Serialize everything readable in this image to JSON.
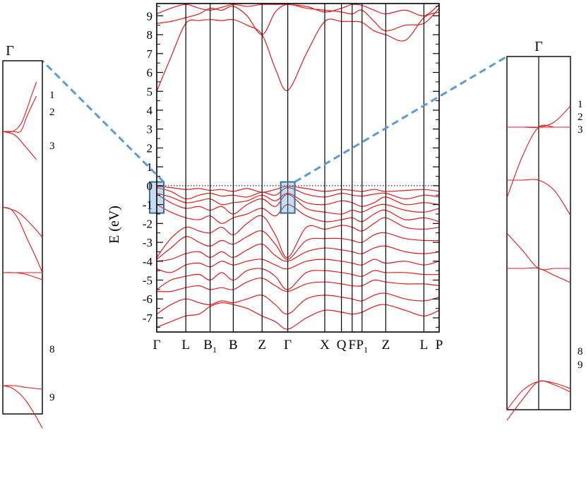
{
  "chart_data": {
    "type": "line",
    "title": "",
    "xlabel": "",
    "ylabel": "E (eV)",
    "ylim": [
      -7.75,
      9.65
    ],
    "y_ticks": [
      -7,
      -6,
      -5,
      -4,
      -3,
      -2,
      -1,
      0,
      1,
      2,
      3,
      4,
      5,
      6,
      7,
      8,
      9
    ],
    "fermi_level": 0,
    "grid": false,
    "band_color": "#e31a1c",
    "highlight_color": "#5b9bd5",
    "kpoints": [
      {
        "label": "Γ",
        "sub": "",
        "pos": 0.0
      },
      {
        "label": "L",
        "sub": "",
        "pos": 0.103
      },
      {
        "label": "B",
        "sub": "1",
        "pos": 0.189
      },
      {
        "label": "B",
        "sub": "",
        "pos": 0.271
      },
      {
        "label": "Z",
        "sub": "",
        "pos": 0.373
      },
      {
        "label": "Γ",
        "sub": "",
        "pos": 0.464
      },
      {
        "label": "X",
        "sub": "",
        "pos": 0.595
      },
      {
        "label": "Q",
        "sub": "",
        "pos": 0.654
      },
      {
        "label": "F",
        "sub": "",
        "pos": 0.692
      },
      {
        "label": "P",
        "sub": "1",
        "pos": 0.727
      },
      {
        "label": "Z",
        "sub": "",
        "pos": 0.811
      },
      {
        "label": "L",
        "sub": "",
        "pos": 0.946
      },
      {
        "label": "P",
        "sub": "",
        "pos": 1.0
      }
    ],
    "series": [
      {
        "x": [
          0,
          0.05,
          0.103,
          0.15,
          0.189,
          0.23,
          0.271,
          0.32,
          0.373,
          0.42,
          0.464,
          0.53,
          0.595,
          0.654,
          0.692,
          0.727,
          0.77,
          0.811,
          0.88,
          0.946,
          1.0
        ],
        "y": [
          5.0,
          6.8,
          8.6,
          8.75,
          8.8,
          8.75,
          8.8,
          8.5,
          8.0,
          6.2,
          5.05,
          7.0,
          8.7,
          8.7,
          8.7,
          8.65,
          8.2,
          8.0,
          7.7,
          8.9,
          9.2
        ]
      },
      {
        "x": [
          0,
          0.05,
          0.103,
          0.15,
          0.189,
          0.23,
          0.271,
          0.32,
          0.373,
          0.42,
          0.464,
          0.53,
          0.595,
          0.654,
          0.692,
          0.727,
          0.77,
          0.811,
          0.88,
          0.946,
          1.0
        ],
        "y": [
          8.6,
          8.7,
          8.9,
          9.1,
          9.4,
          9.3,
          9.5,
          9.0,
          8.0,
          9.2,
          9.6,
          9.4,
          9.3,
          9.2,
          9.1,
          9.3,
          8.7,
          8.2,
          8.5,
          8.6,
          9.4
        ]
      },
      {
        "x": [
          0,
          0.05,
          0.103,
          0.15,
          0.189,
          0.23,
          0.271,
          0.32,
          0.373,
          0.42,
          0.464,
          0.53,
          0.595,
          0.654,
          0.692,
          0.727,
          0.77,
          0.811,
          0.88,
          0.946,
          1.0
        ],
        "y": [
          9.1,
          9.4,
          9.6,
          9.4,
          9.3,
          9.45,
          9.6,
          9.5,
          9.6,
          9.6,
          9.6,
          9.5,
          9.2,
          9.4,
          9.6,
          9.55,
          9.3,
          9.1,
          9.3,
          9.0,
          9.6
        ]
      },
      {
        "x": [
          0,
          0.05,
          0.103,
          0.15,
          0.189,
          0.23,
          0.271,
          0.32,
          0.373,
          0.42,
          0.464,
          0.53,
          0.595,
          0.654,
          0.692,
          0.727,
          0.77,
          0.811,
          0.88,
          0.946,
          1.0
        ],
        "y": [
          -0.03,
          -0.1,
          -0.2,
          -0.15,
          -0.25,
          -0.2,
          -0.3,
          -0.15,
          -0.35,
          -0.2,
          -0.03,
          -0.15,
          -0.3,
          -0.2,
          -0.25,
          -0.3,
          -0.2,
          -0.3,
          -0.25,
          -0.2,
          -0.3
        ]
      },
      {
        "x": [
          0,
          0.05,
          0.103,
          0.15,
          0.189,
          0.23,
          0.271,
          0.32,
          0.373,
          0.42,
          0.464,
          0.53,
          0.595,
          0.654,
          0.692,
          0.727,
          0.77,
          0.811,
          0.88,
          0.946,
          1.0
        ],
        "y": [
          -0.1,
          -0.3,
          -0.7,
          -0.5,
          -0.4,
          -0.55,
          -0.5,
          -0.6,
          -0.35,
          -0.5,
          -0.1,
          -0.45,
          -0.6,
          -0.4,
          -0.5,
          -0.55,
          -0.45,
          -0.4,
          -0.7,
          -0.5,
          -0.6
        ]
      },
      {
        "x": [
          0,
          0.05,
          0.103,
          0.15,
          0.189,
          0.23,
          0.271,
          0.32,
          0.373,
          0.42,
          0.464,
          0.53,
          0.595,
          0.654,
          0.692,
          0.727,
          0.77,
          0.811,
          0.88,
          0.946,
          1.0
        ],
        "y": [
          -0.4,
          -0.6,
          -0.9,
          -0.8,
          -0.7,
          -1.0,
          -0.9,
          -0.8,
          -0.5,
          -0.8,
          -0.4,
          -0.9,
          -1.0,
          -0.8,
          -0.9,
          -1.1,
          -0.9,
          -0.6,
          -1.0,
          -0.9,
          -1.0
        ]
      },
      {
        "x": [
          0,
          0.05,
          0.103,
          0.15,
          0.189,
          0.23,
          0.271,
          0.32,
          0.373,
          0.42,
          0.464,
          0.53,
          0.595,
          0.654,
          0.692,
          0.727,
          0.77,
          0.811,
          0.88,
          0.946,
          1.0
        ],
        "y": [
          -0.45,
          -0.9,
          -1.2,
          -1.1,
          -1.3,
          -1.1,
          -1.5,
          -1.0,
          -0.7,
          -1.1,
          -0.45,
          -1.2,
          -1.4,
          -1.5,
          -1.3,
          -1.4,
          -1.1,
          -1.0,
          -1.3,
          -1.4,
          -1.2
        ]
      },
      {
        "x": [
          0,
          0.05,
          0.103,
          0.15,
          0.189,
          0.23,
          0.271,
          0.32,
          0.373,
          0.42,
          0.464,
          0.53,
          0.595,
          0.654,
          0.692,
          0.727,
          0.77,
          0.811,
          0.88,
          0.946,
          1.0
        ],
        "y": [
          -1.0,
          -1.4,
          -1.7,
          -1.8,
          -1.6,
          -2.0,
          -1.7,
          -1.5,
          -1.2,
          -1.6,
          -1.0,
          -1.6,
          -1.9,
          -1.8,
          -1.7,
          -1.9,
          -1.5,
          -1.3,
          -1.8,
          -1.7,
          -1.9
        ]
      },
      {
        "x": [
          0,
          0.05,
          0.103,
          0.15,
          0.189,
          0.23,
          0.271,
          0.32,
          0.373,
          0.42,
          0.464,
          0.53,
          0.595,
          0.654,
          0.692,
          0.727,
          0.77,
          0.811,
          0.88,
          0.946,
          1.0
        ],
        "y": [
          -3.8,
          -2.8,
          -2.2,
          -2.4,
          -2.5,
          -2.2,
          -2.6,
          -2.0,
          -1.6,
          -2.6,
          -3.8,
          -2.2,
          -2.3,
          -2.1,
          -2.2,
          -2.4,
          -2.0,
          -1.7,
          -2.2,
          -2.3,
          -2.2
        ]
      },
      {
        "x": [
          0,
          0.05,
          0.103,
          0.15,
          0.189,
          0.23,
          0.271,
          0.32,
          0.373,
          0.42,
          0.464,
          0.53,
          0.595,
          0.654,
          0.692,
          0.727,
          0.77,
          0.811,
          0.88,
          0.946,
          1.0
        ],
        "y": [
          -3.9,
          -3.3,
          -2.7,
          -3.0,
          -3.2,
          -2.9,
          -3.1,
          -2.7,
          -2.4,
          -3.1,
          -3.9,
          -2.9,
          -2.8,
          -2.8,
          -2.9,
          -3.0,
          -2.6,
          -2.5,
          -2.8,
          -2.9,
          -2.9
        ]
      },
      {
        "x": [
          0,
          0.05,
          0.103,
          0.15,
          0.189,
          0.23,
          0.271,
          0.32,
          0.373,
          0.42,
          0.464,
          0.53,
          0.595,
          0.654,
          0.692,
          0.727,
          0.77,
          0.811,
          0.88,
          0.946,
          1.0
        ],
        "y": [
          -4.0,
          -3.9,
          -3.6,
          -3.5,
          -3.8,
          -3.5,
          -3.8,
          -3.4,
          -3.1,
          -3.7,
          -4.0,
          -3.5,
          -3.3,
          -3.4,
          -3.5,
          -3.6,
          -3.3,
          -3.2,
          -3.5,
          -3.6,
          -3.5
        ]
      },
      {
        "x": [
          0,
          0.05,
          0.103,
          0.15,
          0.189,
          0.23,
          0.271,
          0.32,
          0.373,
          0.42,
          0.464,
          0.53,
          0.595,
          0.654,
          0.692,
          0.727,
          0.77,
          0.811,
          0.88,
          0.946,
          1.0
        ],
        "y": [
          -4.4,
          -4.6,
          -4.2,
          -4.1,
          -4.3,
          -4.0,
          -4.2,
          -4.0,
          -3.9,
          -4.2,
          -4.4,
          -4.0,
          -3.9,
          -4.0,
          -4.1,
          -4.2,
          -3.9,
          -4.1,
          -4.0,
          -4.2,
          -4.0
        ]
      },
      {
        "x": [
          0,
          0.05,
          0.103,
          0.15,
          0.189,
          0.23,
          0.271,
          0.32,
          0.373,
          0.42,
          0.464,
          0.53,
          0.595,
          0.654,
          0.692,
          0.727,
          0.77,
          0.811,
          0.88,
          0.946,
          1.0
        ],
        "y": [
          -5.5,
          -5.0,
          -4.8,
          -4.7,
          -5.0,
          -4.6,
          -5.0,
          -4.5,
          -4.4,
          -4.8,
          -5.5,
          -4.6,
          -4.5,
          -4.6,
          -4.7,
          -4.8,
          -4.5,
          -4.6,
          -4.6,
          -4.7,
          -4.7
        ]
      },
      {
        "x": [
          0,
          0.05,
          0.103,
          0.15,
          0.189,
          0.23,
          0.271,
          0.32,
          0.373,
          0.42,
          0.464,
          0.53,
          0.595,
          0.654,
          0.692,
          0.727,
          0.77,
          0.811,
          0.88,
          0.946,
          1.0
        ],
        "y": [
          -5.6,
          -5.6,
          -5.4,
          -5.3,
          -5.5,
          -5.4,
          -5.5,
          -5.1,
          -4.9,
          -5.3,
          -5.6,
          -5.2,
          -5.1,
          -5.2,
          -5.3,
          -5.3,
          -5.0,
          -5.1,
          -5.2,
          -5.2,
          -5.3
        ]
      },
      {
        "x": [
          0,
          0.05,
          0.103,
          0.15,
          0.189,
          0.23,
          0.271,
          0.32,
          0.373,
          0.42,
          0.464,
          0.53,
          0.595,
          0.654,
          0.692,
          0.727,
          0.77,
          0.811,
          0.88,
          0.946,
          1.0
        ],
        "y": [
          -6.8,
          -6.3,
          -6.0,
          -6.2,
          -6.3,
          -6.1,
          -6.2,
          -6.0,
          -5.8,
          -6.3,
          -6.8,
          -6.0,
          -5.8,
          -5.9,
          -6.0,
          -6.1,
          -5.8,
          -5.7,
          -6.0,
          -6.1,
          -5.9
        ]
      },
      {
        "x": [
          0,
          0.05,
          0.103,
          0.15,
          0.189,
          0.23,
          0.271,
          0.32,
          0.373,
          0.42,
          0.464,
          0.53,
          0.595,
          0.654,
          0.692,
          0.727,
          0.77,
          0.811,
          0.88,
          0.946,
          1.0
        ],
        "y": [
          -7.5,
          -7.2,
          -6.9,
          -6.8,
          -6.4,
          -6.2,
          -6.3,
          -6.5,
          -6.9,
          -7.2,
          -7.6,
          -7.0,
          -6.6,
          -6.7,
          -6.8,
          -6.7,
          -6.4,
          -6.3,
          -6.6,
          -6.9,
          -6.6
        ]
      }
    ],
    "highlight_boxes": [
      {
        "kpoint": 0,
        "ymin": -1.45,
        "ymax": 0.2
      },
      {
        "kpoint": 5,
        "ymin": -1.45,
        "ymax": 0.2
      }
    ],
    "zoom_panels": [
      {
        "title": "Γ",
        "side": "left",
        "band_labels": [
          "1",
          "2",
          "3",
          "8",
          "9"
        ],
        "curves": [
          {
            "x": [
              0,
              0.25,
              0.45,
              0.6,
              0.72,
              0.85
            ],
            "y": [
              0.8,
              0.8,
              0.82,
              0.86,
              0.9,
              0.94
            ]
          },
          {
            "x": [
              0,
              0.25,
              0.45,
              0.6,
              0.72,
              0.85
            ],
            "y": [
              0.8,
              0.8,
              0.8,
              0.84,
              0.87,
              0.9
            ]
          },
          {
            "x": [
              0,
              0.3,
              0.55,
              0.85
            ],
            "y": [
              0.8,
              0.79,
              0.76,
              0.72
            ]
          },
          {
            "x": [
              0,
              0.2,
              0.4,
              0.6,
              0.85,
              1.0
            ],
            "y": [
              0.585,
              0.58,
              0.55,
              0.5,
              0.44,
              0.4
            ]
          },
          {
            "x": [
              0,
              0.2,
              0.4,
              0.6,
              0.85,
              1.0
            ],
            "y": [
              0.585,
              0.58,
              0.57,
              0.55,
              0.52,
              0.5
            ]
          },
          {
            "x": [
              0,
              0.3,
              0.6,
              1.0
            ],
            "y": [
              0.4,
              0.4,
              0.395,
              0.38
            ]
          },
          {
            "x": [
              0,
              0.3,
              0.6,
              1.0
            ],
            "y": [
              0.4,
              0.4,
              0.4,
              0.4
            ]
          },
          {
            "x": [
              0,
              0.3,
              0.6,
              1.0
            ],
            "y": [
              0.08,
              0.08,
              0.075,
              0.07
            ]
          },
          {
            "x": [
              0,
              0.2,
              0.4,
              0.6,
              0.8,
              1.0
            ],
            "y": [
              0.08,
              0.075,
              0.06,
              0.035,
              0.0,
              -0.04
            ]
          }
        ]
      },
      {
        "title": "Γ",
        "side": "right",
        "band_labels": [
          "1",
          "2",
          "3",
          "8",
          "9"
        ],
        "curves": [
          {
            "x": [
              -1,
              -0.5,
              0,
              0.5,
              1
            ],
            "y": [
              0.8,
              0.8,
              0.8,
              0.815,
              0.86
            ]
          },
          {
            "x": [
              -1,
              -0.5,
              0,
              0.5,
              1
            ],
            "y": [
              0.8,
              0.8,
              0.8,
              0.8,
              0.8
            ]
          },
          {
            "x": [
              -1,
              -0.5,
              0,
              0.5,
              1
            ],
            "y": [
              0.6,
              0.72,
              0.8,
              0.8,
              0.8
            ]
          },
          {
            "x": [
              -1,
              -0.5,
              0,
              0.5,
              1
            ],
            "y": [
              0.65,
              0.65,
              0.65,
              0.62,
              0.55
            ]
          },
          {
            "x": [
              -1,
              -0.5,
              0,
              0.5,
              1
            ],
            "y": [
              0.5,
              0.45,
              0.4,
              0.4,
              0.4
            ]
          },
          {
            "x": [
              -1,
              -0.5,
              0,
              0.5,
              1
            ],
            "y": [
              0.4,
              0.4,
              0.4,
              0.38,
              0.36
            ]
          },
          {
            "x": [
              -1,
              -0.5,
              0,
              0.5,
              1
            ],
            "y": [
              0.0,
              0.055,
              0.08,
              0.075,
              0.06
            ]
          },
          {
            "x": [
              -1,
              -0.5,
              0,
              0.5,
              1
            ],
            "y": [
              -0.03,
              0.03,
              0.08,
              0.07,
              0.05
            ]
          }
        ]
      }
    ]
  }
}
